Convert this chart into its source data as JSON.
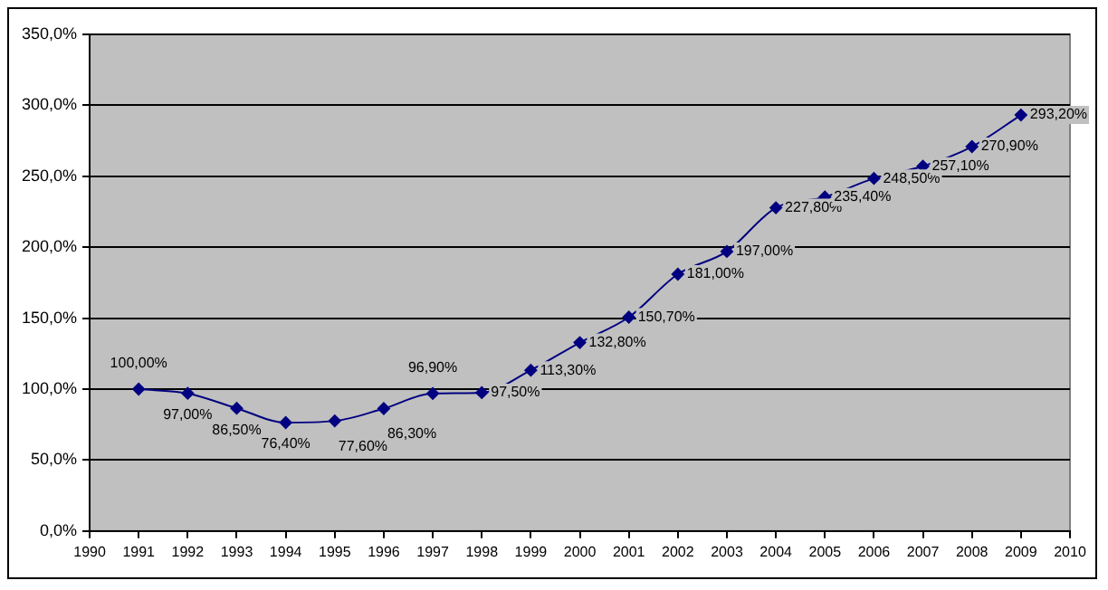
{
  "chart_data": {
    "type": "line",
    "x": [
      1991,
      1992,
      1993,
      1994,
      1995,
      1996,
      1997,
      1998,
      1999,
      2000,
      2001,
      2002,
      2003,
      2004,
      2005,
      2006,
      2007,
      2008,
      2009
    ],
    "series": [
      {
        "color": "#000080",
        "values": [
          100,
          97,
          86.5,
          76.4,
          77.6,
          86.3,
          96.9,
          97.5,
          113.3,
          132.8,
          150.7,
          181,
          197,
          227.8,
          235.4,
          248.5,
          257.1,
          270.9,
          293.2
        ],
        "value_labels": [
          "100,00%",
          "97,00%",
          "86,50%",
          "76,40%",
          "77,60%",
          "86,30%",
          "96,90%",
          "97,50%",
          "113,30%",
          "132,80%",
          "150,70%",
          "181,00%",
          "197,00%",
          "227,80%",
          "235,40%",
          "248,50%",
          "257,10%",
          "270,90%",
          "293,20%"
        ]
      }
    ],
    "xlim": [
      1990,
      2010
    ],
    "xticks": [
      1990,
      1991,
      1992,
      1993,
      1994,
      1995,
      1996,
      1997,
      1998,
      1999,
      2000,
      2001,
      2002,
      2003,
      2004,
      2005,
      2006,
      2007,
      2008,
      2009,
      2010
    ],
    "ylim": [
      0,
      350
    ],
    "yticks": [
      {
        "value": 0,
        "label": "0,0%"
      },
      {
        "value": 50,
        "label": "50,0%"
      },
      {
        "value": 100,
        "label": "100,0%"
      },
      {
        "value": 150,
        "label": "150,0%"
      },
      {
        "value": 200,
        "label": "200,0%"
      },
      {
        "value": 250,
        "label": "250,0%"
      },
      {
        "value": 300,
        "label": "300,0%"
      },
      {
        "value": 350,
        "label": "350,0%"
      }
    ],
    "grid": "y",
    "marker": "diamond",
    "line_style": "solid",
    "legend": false
  }
}
